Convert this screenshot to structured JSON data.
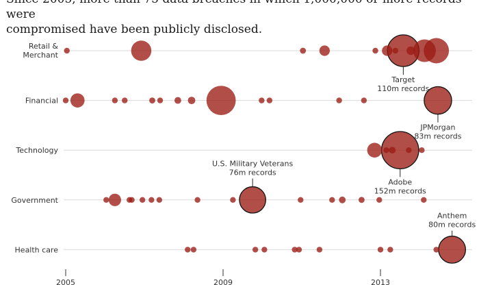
{
  "subtitle_lines": [
    "Since 2005, more than 75 data breaches in which 1,000,000 or more records were",
    "compromised have been publicly disclosed."
  ],
  "chart_data": {
    "type": "scatter",
    "xlim": [
      2005,
      2015.6
    ],
    "x_ticks": [
      "2005",
      "2009",
      "2013"
    ],
    "x_tick_values": [
      2005,
      2009,
      2013
    ],
    "grid": "horizontal row lines",
    "marker_color": "#9b1c14",
    "highlight_stroke": "#111111",
    "categories": [
      "Retail & Merchant",
      "Financial",
      "Technology",
      "Government",
      "Health care"
    ],
    "series": [
      {
        "category": "Retail & Merchant",
        "points": [
          {
            "x": 2005.03,
            "records_m": 1.1
          },
          {
            "x": 2006.92,
            "records_m": 45
          },
          {
            "x": 2011.03,
            "records_m": 4
          },
          {
            "x": 2011.58,
            "records_m": 12
          },
          {
            "x": 2012.87,
            "records_m": 1.5
          },
          {
            "x": 2013.17,
            "records_m": 12
          },
          {
            "x": 2013.38,
            "records_m": 2
          },
          {
            "x": 2013.58,
            "records_m": 110,
            "label": "Target",
            "value_label": "110m records"
          },
          {
            "x": 2013.77,
            "records_m": 8
          },
          {
            "x": 2014.12,
            "records_m": 56
          },
          {
            "x": 2014.42,
            "records_m": 70
          }
        ]
      },
      {
        "category": "Financial",
        "points": [
          {
            "x": 2005.0,
            "records_m": 1.1
          },
          {
            "x": 2005.3,
            "records_m": 22
          },
          {
            "x": 2006.25,
            "records_m": 1.5
          },
          {
            "x": 2006.5,
            "records_m": 2
          },
          {
            "x": 2007.2,
            "records_m": 4
          },
          {
            "x": 2007.4,
            "records_m": 3
          },
          {
            "x": 2007.85,
            "records_m": 5
          },
          {
            "x": 2008.2,
            "records_m": 6
          },
          {
            "x": 2008.95,
            "records_m": 94
          },
          {
            "x": 2009.98,
            "records_m": 1.2
          },
          {
            "x": 2010.18,
            "records_m": 2
          },
          {
            "x": 2011.95,
            "records_m": 3
          },
          {
            "x": 2012.58,
            "records_m": 1
          },
          {
            "x": 2014.46,
            "records_m": 83,
            "label": "JPMorgan",
            "value_label": "83m records"
          }
        ]
      },
      {
        "category": "Technology",
        "points": [
          {
            "x": 2012.85,
            "records_m": 24
          },
          {
            "x": 2013.15,
            "records_m": 3
          },
          {
            "x": 2013.3,
            "records_m": 5
          },
          {
            "x": 2013.5,
            "records_m": 152,
            "label": "Adobe",
            "value_label": "152m records"
          },
          {
            "x": 2013.72,
            "records_m": 3
          },
          {
            "x": 2014.05,
            "records_m": 1.5
          }
        ]
      },
      {
        "category": "Government",
        "points": [
          {
            "x": 2006.03,
            "records_m": 1.2
          },
          {
            "x": 2006.25,
            "records_m": 17
          },
          {
            "x": 2006.62,
            "records_m": 2
          },
          {
            "x": 2006.68,
            "records_m": 2
          },
          {
            "x": 2006.95,
            "records_m": 1.5
          },
          {
            "x": 2007.18,
            "records_m": 3
          },
          {
            "x": 2007.38,
            "records_m": 1.5
          },
          {
            "x": 2008.35,
            "records_m": 2
          },
          {
            "x": 2009.25,
            "records_m": 1.3
          },
          {
            "x": 2009.75,
            "records_m": 76,
            "label": "U.S. Military Veterans",
            "value_label": "76m records"
          },
          {
            "x": 2010.97,
            "records_m": 2
          },
          {
            "x": 2011.77,
            "records_m": 1.5
          },
          {
            "x": 2012.03,
            "records_m": 5
          },
          {
            "x": 2012.52,
            "records_m": 4
          },
          {
            "x": 2012.97,
            "records_m": 1.2
          },
          {
            "x": 2014.1,
            "records_m": 1.5
          }
        ]
      },
      {
        "category": "Health care",
        "points": [
          {
            "x": 2008.1,
            "records_m": 2
          },
          {
            "x": 2008.25,
            "records_m": 1.5
          },
          {
            "x": 2009.82,
            "records_m": 1.5
          },
          {
            "x": 2010.05,
            "records_m": 1.5
          },
          {
            "x": 2010.82,
            "records_m": 1.5
          },
          {
            "x": 2010.93,
            "records_m": 2
          },
          {
            "x": 2011.45,
            "records_m": 1.5
          },
          {
            "x": 2013.0,
            "records_m": 1
          },
          {
            "x": 2013.25,
            "records_m": 3
          },
          {
            "x": 2014.42,
            "records_m": 3
          },
          {
            "x": 2014.82,
            "records_m": 80,
            "label": "Anthem",
            "value_label": "80m records"
          }
        ]
      }
    ]
  }
}
